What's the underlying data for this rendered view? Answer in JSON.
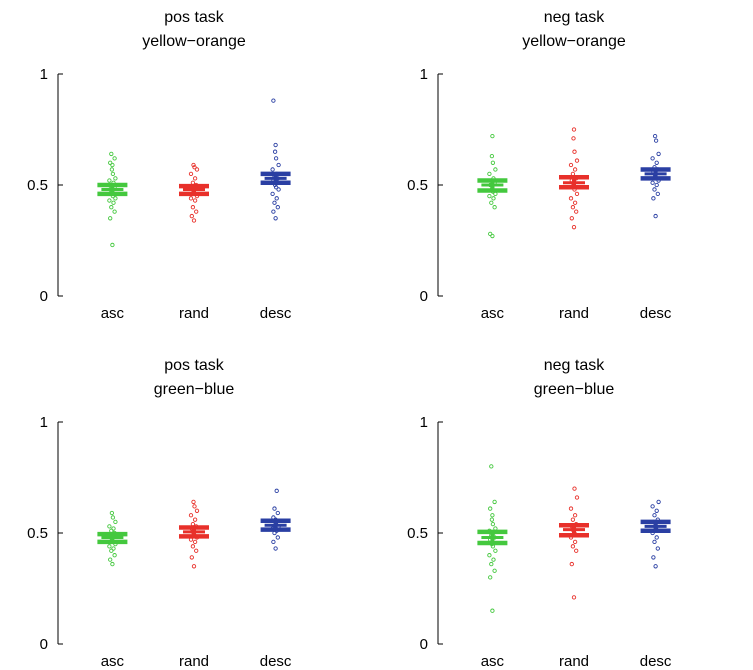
{
  "chart_data": [
    {
      "type": "scatter",
      "title": [
        "pos task",
        "yellow−orange"
      ],
      "categories": [
        "asc",
        "rand",
        "desc"
      ],
      "ylim": [
        0,
        1
      ],
      "yticks": [
        "0",
        "0.5",
        "1"
      ],
      "series": [
        {
          "category": "asc",
          "color": "#44c83e",
          "mean": 0.48,
          "ci": [
            0.46,
            0.5
          ],
          "points": [
            0.23,
            0.35,
            0.38,
            0.4,
            0.42,
            0.43,
            0.44,
            0.45,
            0.46,
            0.47,
            0.48,
            0.49,
            0.5,
            0.51,
            0.52,
            0.53,
            0.55,
            0.57,
            0.59,
            0.6,
            0.62,
            0.64
          ]
        },
        {
          "category": "rand",
          "color": "#e8302a",
          "mean": 0.48,
          "ci": [
            0.46,
            0.495
          ],
          "points": [
            0.34,
            0.36,
            0.38,
            0.4,
            0.43,
            0.44,
            0.45,
            0.46,
            0.47,
            0.48,
            0.49,
            0.5,
            0.51,
            0.53,
            0.55,
            0.57,
            0.58,
            0.59
          ]
        },
        {
          "category": "desc",
          "color": "#2a3fa3",
          "mean": 0.53,
          "ci": [
            0.51,
            0.55
          ],
          "points": [
            0.35,
            0.38,
            0.4,
            0.42,
            0.44,
            0.46,
            0.48,
            0.49,
            0.5,
            0.51,
            0.52,
            0.53,
            0.54,
            0.55,
            0.57,
            0.59,
            0.62,
            0.65,
            0.68,
            0.88
          ]
        }
      ]
    },
    {
      "type": "scatter",
      "title": [
        "neg task",
        "yellow−orange"
      ],
      "categories": [
        "asc",
        "rand",
        "desc"
      ],
      "ylim": [
        0,
        1
      ],
      "yticks": [
        "0",
        "0.5",
        "1"
      ],
      "series": [
        {
          "category": "asc",
          "color": "#44c83e",
          "mean": 0.5,
          "ci": [
            0.475,
            0.52
          ],
          "points": [
            0.27,
            0.28,
            0.4,
            0.42,
            0.44,
            0.45,
            0.46,
            0.47,
            0.48,
            0.49,
            0.5,
            0.51,
            0.52,
            0.53,
            0.55,
            0.57,
            0.6,
            0.63,
            0.72
          ]
        },
        {
          "category": "rand",
          "color": "#e8302a",
          "mean": 0.51,
          "ci": [
            0.49,
            0.535
          ],
          "points": [
            0.31,
            0.35,
            0.38,
            0.4,
            0.42,
            0.44,
            0.46,
            0.48,
            0.5,
            0.51,
            0.52,
            0.53,
            0.55,
            0.57,
            0.59,
            0.61,
            0.65,
            0.71,
            0.75
          ]
        },
        {
          "category": "desc",
          "color": "#2a3fa3",
          "mean": 0.55,
          "ci": [
            0.53,
            0.57
          ],
          "points": [
            0.36,
            0.44,
            0.46,
            0.48,
            0.5,
            0.51,
            0.52,
            0.53,
            0.54,
            0.55,
            0.56,
            0.57,
            0.58,
            0.6,
            0.62,
            0.64,
            0.7,
            0.72
          ]
        }
      ]
    },
    {
      "type": "scatter",
      "title": [
        "pos task",
        "green−blue"
      ],
      "categories": [
        "asc",
        "rand",
        "desc"
      ],
      "ylim": [
        0,
        1
      ],
      "yticks": [
        "0",
        "0.5",
        "1"
      ],
      "series": [
        {
          "category": "asc",
          "color": "#44c83e",
          "mean": 0.48,
          "ci": [
            0.46,
            0.495
          ],
          "points": [
            0.36,
            0.38,
            0.4,
            0.42,
            0.43,
            0.44,
            0.45,
            0.46,
            0.47,
            0.48,
            0.49,
            0.5,
            0.51,
            0.52,
            0.53,
            0.55,
            0.57,
            0.59
          ]
        },
        {
          "category": "rand",
          "color": "#e8302a",
          "mean": 0.505,
          "ci": [
            0.485,
            0.525
          ],
          "points": [
            0.35,
            0.39,
            0.42,
            0.44,
            0.46,
            0.47,
            0.48,
            0.49,
            0.5,
            0.51,
            0.52,
            0.53,
            0.54,
            0.56,
            0.58,
            0.6,
            0.62,
            0.64
          ]
        },
        {
          "category": "desc",
          "color": "#2a3fa3",
          "mean": 0.535,
          "ci": [
            0.515,
            0.555
          ],
          "points": [
            0.43,
            0.46,
            0.48,
            0.5,
            0.51,
            0.52,
            0.53,
            0.54,
            0.55,
            0.56,
            0.57,
            0.59,
            0.61,
            0.69
          ]
        }
      ]
    },
    {
      "type": "scatter",
      "title": [
        "neg task",
        "green−blue"
      ],
      "categories": [
        "asc",
        "rand",
        "desc"
      ],
      "ylim": [
        0,
        1
      ],
      "yticks": [
        "0",
        "0.5",
        "1"
      ],
      "series": [
        {
          "category": "asc",
          "color": "#44c83e",
          "mean": 0.48,
          "ci": [
            0.455,
            0.505
          ],
          "points": [
            0.15,
            0.3,
            0.33,
            0.36,
            0.38,
            0.4,
            0.42,
            0.44,
            0.45,
            0.46,
            0.47,
            0.48,
            0.49,
            0.5,
            0.51,
            0.52,
            0.54,
            0.56,
            0.58,
            0.61,
            0.64,
            0.8
          ]
        },
        {
          "category": "rand",
          "color": "#e8302a",
          "mean": 0.515,
          "ci": [
            0.49,
            0.535
          ],
          "points": [
            0.21,
            0.36,
            0.42,
            0.44,
            0.46,
            0.48,
            0.49,
            0.5,
            0.51,
            0.52,
            0.53,
            0.54,
            0.56,
            0.58,
            0.61,
            0.66,
            0.7
          ]
        },
        {
          "category": "desc",
          "color": "#2a3fa3",
          "mean": 0.53,
          "ci": [
            0.51,
            0.55
          ],
          "points": [
            0.35,
            0.39,
            0.43,
            0.46,
            0.48,
            0.5,
            0.51,
            0.52,
            0.53,
            0.54,
            0.55,
            0.56,
            0.58,
            0.6,
            0.62,
            0.64
          ]
        }
      ]
    }
  ]
}
